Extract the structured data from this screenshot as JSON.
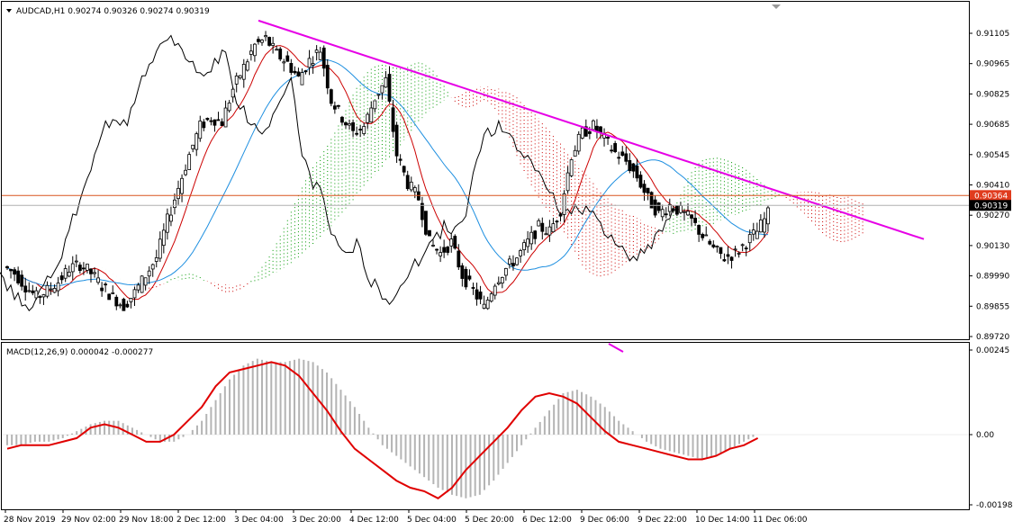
{
  "window": {
    "symbol_header": "AUDCAD,H1  0.90274 0.90326 0.90274 0.90319",
    "macd_header": "MACD(12,26,9) 0.000042 -0.000277"
  },
  "colors": {
    "bull": "#000000",
    "bear": "#000000",
    "trendline": "#e600e6",
    "price_line_red": "#d9531e",
    "price_line_gray": "#b0b0b0",
    "tenkan": "#cc0000",
    "kijun": "#1e8fe0",
    "chikou": "#000000",
    "cloud_bull": "#009900",
    "cloud_bear": "#cc0000",
    "macd_hist": "#b4b4b4",
    "macd_signal": "#e00000"
  },
  "chart_data": [
    {
      "type": "candlestick",
      "symbol": "AUDCAD",
      "timeframe": "H1",
      "indicators": [
        "Ichimoku Kinko Hyo",
        "trendline"
      ],
      "ylim": [
        0.8972,
        0.9118
      ],
      "y_ticks": [
        "0.91105",
        "0.90965",
        "0.90825",
        "0.90685",
        "0.90545",
        "0.90410",
        "0.90270",
        "0.90130",
        "0.89990",
        "0.89855",
        "0.89720"
      ],
      "price_labels": [
        {
          "value": 0.90364,
          "text": "0.90364",
          "style": "red"
        },
        {
          "value": 0.90319,
          "text": "0.90319",
          "style": "dark"
        }
      ],
      "x_ticks": [
        "28 Nov 2019",
        "29 Nov 02:00",
        "29 Nov 18:00",
        "2 Dec 12:00",
        "3 Dec 04:00",
        "3 Dec 20:00",
        "4 Dec 12:00",
        "5 Dec 04:00",
        "5 Dec 20:00",
        "6 Dec 12:00",
        "9 Dec 06:00",
        "9 Dec 22:00",
        "10 Dec 14:00",
        "11 Dec 06:00"
      ],
      "trendline": {
        "from": {
          "x": "3 Dec 04:00",
          "y": 0.9112
        },
        "to": {
          "x": "11 Dec 22:00",
          "y": 0.9017
        }
      },
      "close_path": [
        0.9001,
        0.8995,
        0.899,
        0.8993,
        0.8997,
        0.9003,
        0.9005,
        0.9001,
        0.8995,
        0.899,
        0.8986,
        0.8992,
        0.9,
        0.9008,
        0.9025,
        0.904,
        0.9055,
        0.9068,
        0.9072,
        0.907,
        0.9085,
        0.9095,
        0.9105,
        0.9108,
        0.9101,
        0.9097,
        0.909,
        0.9098,
        0.9103,
        0.908,
        0.9072,
        0.9065,
        0.9068,
        0.9081,
        0.9089,
        0.9055,
        0.9042,
        0.9035,
        0.9015,
        0.901,
        0.9015,
        0.9,
        0.8993,
        0.8985,
        0.8997,
        0.9003,
        0.9008,
        0.9015,
        0.9022,
        0.902,
        0.903,
        0.9055,
        0.9065,
        0.9068,
        0.9062,
        0.9056,
        0.9052,
        0.9045,
        0.9035,
        0.9028,
        0.9032,
        0.9029,
        0.9025,
        0.9018,
        0.9012,
        0.9008,
        0.901,
        0.9015,
        0.902,
        0.9028
      ]
    },
    {
      "type": "bar",
      "name": "MACD(12,26,9)",
      "ylim": [
        -0.002,
        0.00245
      ],
      "y_ticks": [
        "0.00245",
        "0.00",
        "-0.001984"
      ],
      "histogram": [
        -0.0003,
        -0.0003,
        -0.0002,
        -0.0002,
        -0.0001,
        0.0001,
        0.0003,
        0.0004,
        0.0004,
        0.0002,
        0.0,
        -0.0002,
        -0.0002,
        0.0,
        0.0004,
        0.001,
        0.0016,
        0.002,
        0.0022,
        0.0021,
        0.0021,
        0.0022,
        0.0021,
        0.0018,
        0.0013,
        0.0008,
        0.0002,
        -0.0003,
        -0.0006,
        -0.0009,
        -0.0012,
        -0.0015,
        -0.0017,
        -0.0018,
        -0.0017,
        -0.0013,
        -0.0008,
        -0.0003,
        0.0002,
        0.0007,
        0.0012,
        0.0013,
        0.0011,
        0.0008,
        0.0004,
        0.0001,
        -0.0002,
        -0.0004,
        -0.0005,
        -0.0006,
        -0.0007,
        -0.0006,
        -0.0004,
        -0.0002,
        0.0
      ],
      "signal": [
        -0.0004,
        -0.0003,
        -0.0003,
        -0.0003,
        -0.0002,
        -0.0001,
        0.0002,
        0.0003,
        0.0002,
        0.0,
        -0.0002,
        -0.0002,
        0.0,
        0.0004,
        0.0008,
        0.0014,
        0.0018,
        0.0019,
        0.002,
        0.0021,
        0.002,
        0.0017,
        0.0012,
        0.0007,
        0.0001,
        -0.0004,
        -0.0007,
        -0.001,
        -0.0013,
        -0.0015,
        -0.0016,
        -0.0018,
        -0.0015,
        -0.001,
        -0.0006,
        -0.0002,
        0.0002,
        0.0007,
        0.0011,
        0.0012,
        0.0011,
        0.0009,
        0.0005,
        0.0001,
        -0.0002,
        -0.0003,
        -0.0004,
        -0.0005,
        -0.0006,
        -0.0007,
        -0.0007,
        -0.0006,
        -0.0004,
        -0.0003,
        -0.0001
      ]
    }
  ]
}
